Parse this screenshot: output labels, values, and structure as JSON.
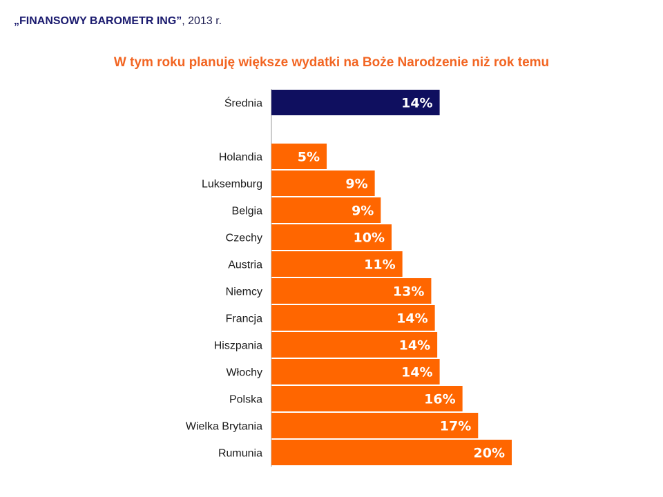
{
  "header": {
    "brand": "„FINANSOWY BAROMETR ING”",
    "suffix": ", 2013 r."
  },
  "colors": {
    "average": "#0f0f5f",
    "country": "#ff6600",
    "title": "#f26522"
  },
  "chart_data": {
    "type": "bar",
    "orientation": "horizontal",
    "title": "W tym roku planuję większe wydatki na Boże Narodzenie niż rok temu",
    "xlabel": "",
    "ylabel": "",
    "xlim": [
      0,
      20
    ],
    "grid": false,
    "average": {
      "category": "Średnia",
      "value": 14,
      "label": "14%"
    },
    "categories": [
      "Holandia",
      "Luksemburg",
      "Belgia",
      "Czechy",
      "Austria",
      "Niemcy",
      "Francja",
      "Hiszpania",
      "Włochy",
      "Polska",
      "Wielka Brytania",
      "Rumunia"
    ],
    "values": [
      4.6,
      8.6,
      9.1,
      10.0,
      10.9,
      13.3,
      13.6,
      13.8,
      14.0,
      15.9,
      17.2,
      20.0
    ],
    "value_labels": [
      "5%",
      "9%",
      "9%",
      "10%",
      "11%",
      "13%",
      "14%",
      "14%",
      "14%",
      "16%",
      "17%",
      "20%"
    ]
  }
}
